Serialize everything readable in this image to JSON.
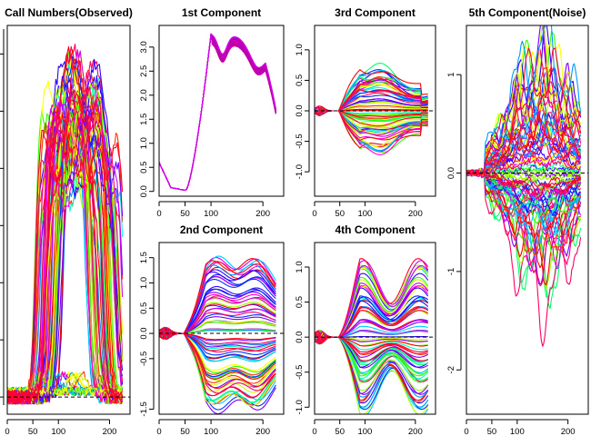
{
  "chart_data": [
    {
      "type": "line",
      "title": "Call Numbers(Observed)",
      "xlim": [
        0,
        240
      ],
      "ylim": [
        -0.3,
        6.5
      ],
      "xticks": [
        0,
        50,
        100,
        200
      ],
      "yticks": [],
      "zero_line": true,
      "n_series": 80,
      "shape": "observed"
    },
    {
      "type": "line",
      "title": "1st Component",
      "xlim": [
        0,
        240
      ],
      "ylim": [
        -0.1,
        3.45
      ],
      "xticks": [
        0,
        50,
        100,
        200
      ],
      "yticks": [
        0.0,
        0.5,
        1.0,
        1.5,
        2.0,
        2.5,
        3.0
      ],
      "zero_line": false,
      "n_series": 40,
      "shape": "first"
    },
    {
      "type": "line",
      "title": "2nd Component",
      "xlim": [
        0,
        240
      ],
      "ylim": [
        -1.6,
        1.8
      ],
      "xticks": [
        0,
        50,
        100,
        200
      ],
      "yticks": [
        -1.5,
        -0.5,
        0.0,
        0.5,
        1.0,
        1.5
      ],
      "zero_line": true,
      "n_series": 70,
      "shape": "second"
    },
    {
      "type": "line",
      "title": "3rd Component",
      "xlim": [
        0,
        240
      ],
      "ylim": [
        -1.4,
        1.4
      ],
      "xticks": [
        0,
        50,
        100,
        200
      ],
      "yticks": [
        -1.0,
        -0.5,
        0.0,
        0.5,
        1.0
      ],
      "zero_line": true,
      "n_series": 70,
      "shape": "third"
    },
    {
      "type": "line",
      "title": "4th Component",
      "xlim": [
        0,
        240
      ],
      "ylim": [
        -1.1,
        1.35
      ],
      "xticks": [
        0,
        50,
        100,
        200
      ],
      "yticks": [
        -1.0,
        -0.5,
        0.0,
        0.5,
        1.0
      ],
      "zero_line": true,
      "n_series": 70,
      "shape": "fourth"
    },
    {
      "type": "line",
      "title": "5th Component(Noise)",
      "xlim": [
        0,
        240
      ],
      "ylim": [
        -2.45,
        1.5
      ],
      "xticks": [
        0,
        50,
        100,
        200
      ],
      "yticks": [
        -2,
        -1,
        0,
        1
      ],
      "zero_line": true,
      "n_series": 80,
      "shape": "noise"
    }
  ]
}
